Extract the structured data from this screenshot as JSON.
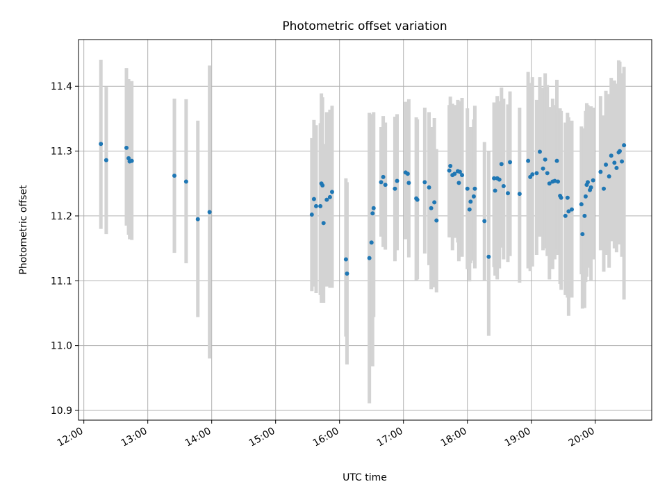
{
  "chart_data": {
    "type": "scatter",
    "title": "Photometric offset variation",
    "xlabel": "UTC time",
    "ylabel": "Photometric offset",
    "x_ticks": [
      "12:00",
      "13:00",
      "14:00",
      "15:00",
      "16:00",
      "17:00",
      "18:00",
      "19:00",
      "20:00"
    ],
    "y_ticks": [
      "10.9",
      "11.0",
      "11.1",
      "11.2",
      "11.3",
      "11.4"
    ],
    "xlim": [
      "11:55",
      "20:53"
    ],
    "ylim": [
      10.885,
      11.472
    ],
    "grid": true,
    "error_bar_color": "#d3d3d3",
    "point_color": "#1f77b4",
    "series": [
      {
        "x": [
          "12:16",
          "12:21",
          "12:40",
          "12:42",
          "12:43",
          "12:45",
          "13:25",
          "13:36",
          "13:47",
          "13:58",
          "15:34",
          "15:36",
          "15:38",
          "15:42",
          "15:43",
          "15:44",
          "15:45",
          "15:48",
          "15:51",
          "15:53",
          "16:06",
          "16:07",
          "16:28",
          "16:30",
          "16:31",
          "16:32",
          "16:39",
          "16:41",
          "16:43",
          "16:52",
          "16:54",
          "17:02",
          "17:04",
          "17:05",
          "17:12",
          "17:13",
          "17:20",
          "17:24",
          "17:26",
          "17:29",
          "17:31",
          "17:43",
          "17:44",
          "17:46",
          "17:48",
          "17:51",
          "17:52",
          "17:53",
          "17:55",
          "18:00",
          "18:02",
          "18:03",
          "18:06",
          "18:07",
          "18:16",
          "18:20",
          "18:25",
          "18:26",
          "18:28",
          "18:30",
          "18:32",
          "18:34",
          "18:38",
          "18:40",
          "18:49",
          "18:57",
          "18:59",
          "19:01",
          "19:05",
          "19:08",
          "19:11",
          "19:13",
          "19:15",
          "19:17",
          "19:20",
          "19:22",
          "19:24",
          "19:25",
          "19:27",
          "19:28",
          "19:32",
          "19:34",
          "19:35",
          "19:38",
          "19:47",
          "19:48",
          "19:50",
          "19:51",
          "19:52",
          "19:53",
          "19:55",
          "19:56",
          "19:58",
          "20:05",
          "20:08",
          "20:10",
          "20:13",
          "20:15",
          "20:18",
          "20:20",
          "20:22",
          "20:23",
          "20:25",
          "20:27"
        ],
        "y": [
          11.311,
          11.286,
          11.305,
          11.289,
          11.284,
          11.285,
          11.262,
          11.253,
          11.195,
          11.206,
          11.202,
          11.226,
          11.215,
          11.215,
          11.25,
          11.247,
          11.189,
          11.225,
          11.229,
          11.237,
          11.133,
          11.111,
          11.135,
          11.159,
          11.204,
          11.212,
          11.252,
          11.26,
          11.248,
          11.242,
          11.254,
          11.267,
          11.265,
          11.251,
          11.227,
          11.225,
          11.252,
          11.244,
          11.212,
          11.221,
          11.193,
          11.27,
          11.277,
          11.263,
          11.265,
          11.269,
          11.251,
          11.268,
          11.263,
          11.242,
          11.21,
          11.222,
          11.23,
          11.242,
          11.192,
          11.137,
          11.258,
          11.239,
          11.258,
          11.256,
          11.28,
          11.246,
          11.235,
          11.283,
          11.234,
          11.285,
          11.26,
          11.264,
          11.266,
          11.299,
          11.273,
          11.287,
          11.266,
          11.25,
          11.253,
          11.254,
          11.285,
          11.253,
          11.231,
          11.228,
          11.2,
          11.228,
          11.207,
          11.21,
          11.218,
          11.172,
          11.2,
          11.23,
          11.248,
          11.252,
          11.24,
          11.244,
          11.255,
          11.268,
          11.242,
          11.279,
          11.261,
          11.293,
          11.282,
          11.274,
          11.298,
          11.3,
          11.284,
          11.309
        ],
        "yerr_low": [
          11.18,
          11.172,
          11.185,
          11.171,
          11.164,
          11.163,
          11.143,
          11.127,
          11.044,
          10.98,
          11.084,
          11.091,
          11.081,
          11.078,
          11.066,
          11.066,
          11.066,
          11.091,
          11.089,
          11.089,
          11.014,
          10.971,
          10.911,
          10.995,
          10.968,
          11.044,
          11.168,
          11.152,
          11.148,
          11.13,
          11.147,
          11.164,
          11.175,
          11.136,
          11.1,
          11.102,
          11.142,
          11.124,
          11.087,
          11.09,
          11.082,
          11.167,
          11.167,
          11.147,
          11.166,
          11.159,
          11.13,
          11.144,
          11.137,
          11.118,
          11.099,
          11.127,
          11.131,
          11.119,
          11.1,
          11.015,
          11.121,
          11.108,
          11.102,
          11.119,
          11.151,
          11.133,
          11.129,
          11.138,
          11.097,
          11.119,
          11.115,
          11.122,
          11.14,
          11.168,
          11.147,
          11.15,
          11.138,
          11.102,
          11.118,
          11.133,
          11.148,
          11.14,
          11.095,
          11.086,
          11.078,
          11.074,
          11.046,
          11.074,
          11.11,
          11.057,
          11.058,
          11.098,
          11.106,
          11.124,
          11.12,
          11.101,
          11.133,
          11.147,
          11.114,
          11.14,
          11.12,
          11.161,
          11.15,
          11.144,
          11.157,
          11.156,
          11.137,
          11.071
        ],
        "yerr_high": [
          11.441,
          11.399,
          11.428,
          11.411,
          11.408,
          11.408,
          11.381,
          11.38,
          11.347,
          11.432,
          11.32,
          11.348,
          11.34,
          11.343,
          11.389,
          11.383,
          11.311,
          11.36,
          11.364,
          11.37,
          11.258,
          11.252,
          11.359,
          11.323,
          11.357,
          11.36,
          11.337,
          11.354,
          11.344,
          11.353,
          11.357,
          11.376,
          11.364,
          11.38,
          11.352,
          11.349,
          11.367,
          11.36,
          11.337,
          11.351,
          11.303,
          11.371,
          11.384,
          11.373,
          11.371,
          11.379,
          11.372,
          11.377,
          11.382,
          11.366,
          11.323,
          11.337,
          11.349,
          11.37,
          11.314,
          11.3,
          11.375,
          11.361,
          11.385,
          11.377,
          11.398,
          11.381,
          11.372,
          11.392,
          11.367,
          11.422,
          11.405,
          11.414,
          11.379,
          11.414,
          11.398,
          11.42,
          11.402,
          11.368,
          11.381,
          11.371,
          11.41,
          11.359,
          11.366,
          11.362,
          11.344,
          11.359,
          11.352,
          11.347,
          11.338,
          11.309,
          11.335,
          11.362,
          11.374,
          11.371,
          11.356,
          11.369,
          11.367,
          11.385,
          11.355,
          11.393,
          11.388,
          11.413,
          11.409,
          11.404,
          11.44,
          11.438,
          11.42,
          11.43
        ]
      }
    ]
  }
}
